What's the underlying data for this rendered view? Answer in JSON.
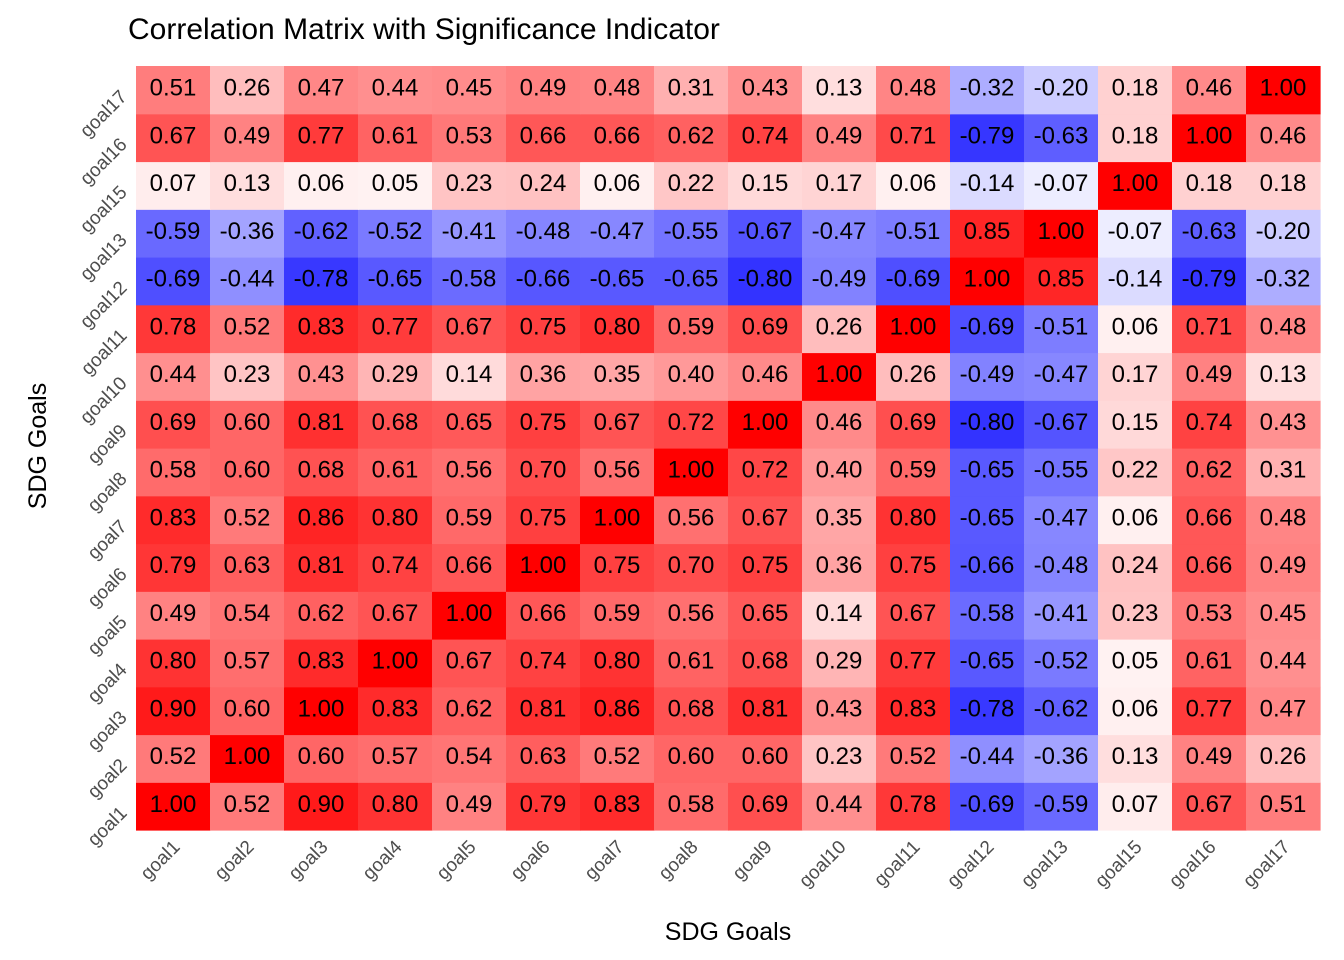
{
  "chart_data": {
    "type": "heatmap",
    "title": "Correlation Matrix with Significance Indicator",
    "xlabel": "SDG Goals",
    "ylabel": "SDG Goals",
    "categories": [
      "goal1",
      "goal2",
      "goal3",
      "goal4",
      "goal5",
      "goal6",
      "goal7",
      "goal8",
      "goal9",
      "goal10",
      "goal11",
      "goal12",
      "goal13",
      "goal15",
      "goal16",
      "goal17"
    ],
    "value_range": [
      -1,
      1
    ],
    "color_low": "#0000ff",
    "color_mid": "#ffffff",
    "color_high": "#ff0000",
    "grid": true,
    "values": [
      [
        1.0,
        0.52,
        0.9,
        0.8,
        0.49,
        0.79,
        0.83,
        0.58,
        0.69,
        0.44,
        0.78,
        -0.69,
        -0.59,
        0.07,
        0.67,
        0.51
      ],
      [
        0.52,
        1.0,
        0.6,
        0.57,
        0.54,
        0.63,
        0.52,
        0.6,
        0.6,
        0.23,
        0.52,
        -0.44,
        -0.36,
        0.13,
        0.49,
        0.26
      ],
      [
        0.9,
        0.6,
        1.0,
        0.83,
        0.62,
        0.81,
        0.86,
        0.68,
        0.81,
        0.43,
        0.83,
        -0.78,
        -0.62,
        0.06,
        0.77,
        0.47
      ],
      [
        0.8,
        0.57,
        0.83,
        1.0,
        0.67,
        0.74,
        0.8,
        0.61,
        0.68,
        0.29,
        0.77,
        -0.65,
        -0.52,
        0.05,
        0.61,
        0.44
      ],
      [
        0.49,
        0.54,
        0.62,
        0.67,
        1.0,
        0.66,
        0.59,
        0.56,
        0.65,
        0.14,
        0.67,
        -0.58,
        -0.41,
        0.23,
        0.53,
        0.45
      ],
      [
        0.79,
        0.63,
        0.81,
        0.74,
        0.66,
        1.0,
        0.75,
        0.7,
        0.75,
        0.36,
        0.75,
        -0.66,
        -0.48,
        0.24,
        0.66,
        0.49
      ],
      [
        0.83,
        0.52,
        0.86,
        0.8,
        0.59,
        0.75,
        1.0,
        0.56,
        0.67,
        0.35,
        0.8,
        -0.65,
        -0.47,
        0.06,
        0.66,
        0.48
      ],
      [
        0.58,
        0.6,
        0.68,
        0.61,
        0.56,
        0.7,
        0.56,
        1.0,
        0.72,
        0.4,
        0.59,
        -0.65,
        -0.55,
        0.22,
        0.62,
        0.31
      ],
      [
        0.69,
        0.6,
        0.81,
        0.68,
        0.65,
        0.75,
        0.67,
        0.72,
        1.0,
        0.46,
        0.69,
        -0.8,
        -0.67,
        0.15,
        0.74,
        0.43
      ],
      [
        0.44,
        0.23,
        0.43,
        0.29,
        0.14,
        0.36,
        0.35,
        0.4,
        0.46,
        1.0,
        0.26,
        -0.49,
        -0.47,
        0.17,
        0.49,
        0.13
      ],
      [
        0.78,
        0.52,
        0.83,
        0.77,
        0.67,
        0.75,
        0.8,
        0.59,
        0.69,
        0.26,
        1.0,
        -0.69,
        -0.51,
        0.06,
        0.71,
        0.48
      ],
      [
        -0.69,
        -0.44,
        -0.78,
        -0.65,
        -0.58,
        -0.66,
        -0.65,
        -0.65,
        -0.8,
        -0.49,
        -0.69,
        1.0,
        0.85,
        -0.14,
        -0.79,
        -0.32
      ],
      [
        -0.59,
        -0.36,
        -0.62,
        -0.52,
        -0.41,
        -0.48,
        -0.47,
        -0.55,
        -0.67,
        -0.47,
        -0.51,
        0.85,
        1.0,
        -0.07,
        -0.63,
        -0.2
      ],
      [
        0.07,
        0.13,
        0.06,
        0.05,
        0.23,
        0.24,
        0.06,
        0.22,
        0.15,
        0.17,
        0.06,
        -0.14,
        -0.07,
        1.0,
        0.18,
        0.18
      ],
      [
        0.67,
        0.49,
        0.77,
        0.61,
        0.53,
        0.66,
        0.66,
        0.62,
        0.74,
        0.49,
        0.71,
        -0.79,
        -0.63,
        0.18,
        1.0,
        0.46
      ],
      [
        0.51,
        0.26,
        0.47,
        0.44,
        0.45,
        0.49,
        0.48,
        0.31,
        0.43,
        0.13,
        0.48,
        -0.32,
        -0.2,
        0.18,
        0.46,
        1.0
      ]
    ]
  }
}
